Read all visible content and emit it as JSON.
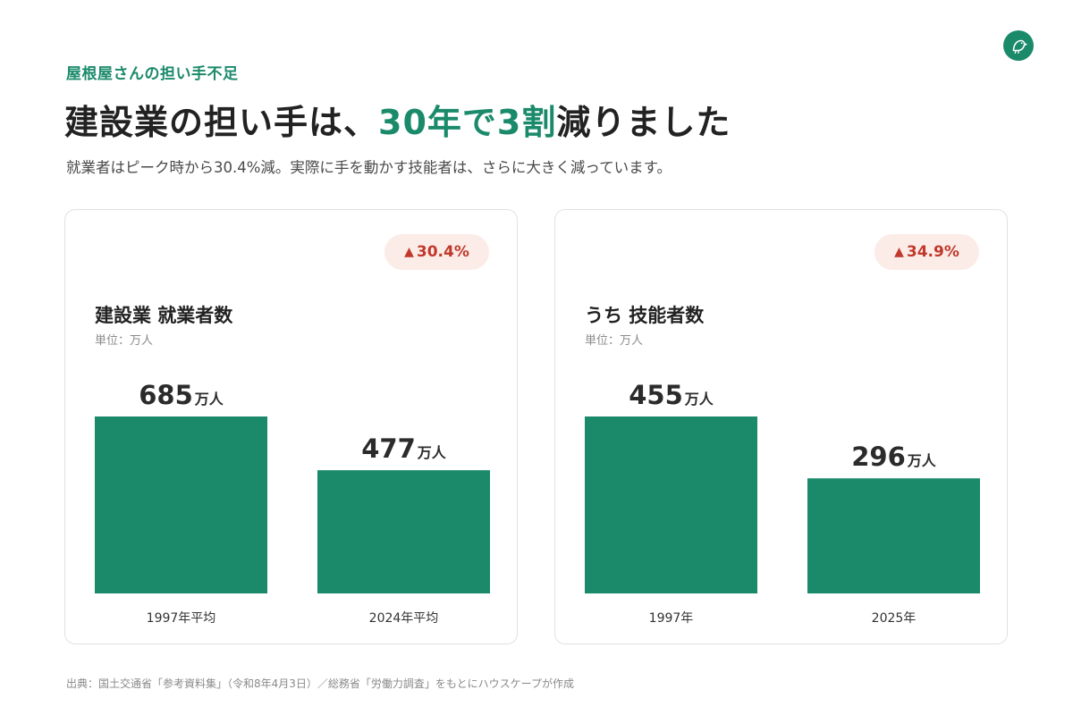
{
  "header": {
    "eyebrow": "屋根屋さんの担い手不足",
    "headline_pre": "建設業の担い手は、",
    "headline_accent": "30年で3割",
    "headline_post": "減りました",
    "subline": "就業者はピーク時から30.4%減。実際に手を動かす技能者は、さらに大きく減っています。"
  },
  "logo": {
    "icon": "bird-icon"
  },
  "colors": {
    "accent": "#1b8a6b",
    "bar": "#1b8a6b",
    "badge_text": "#c0392b",
    "badge_bg": "#fbece8"
  },
  "cards": [
    {
      "badge": "30.4%",
      "badge_icon": "▲",
      "title": "建設業 就業者数",
      "unit_label": "単位：万人"
    },
    {
      "badge": "34.9%",
      "badge_icon": "▲",
      "title": "うち 技能者数",
      "unit_label": "単位：万人"
    }
  ],
  "chart_data": [
    {
      "type": "bar",
      "title": "建設業 就業者数",
      "categories": [
        "1997年平均",
        "2024年平均"
      ],
      "values": [
        685,
        477
      ],
      "value_unit": "万人",
      "ylim": [
        0,
        685
      ],
      "grid": false
    },
    {
      "type": "bar",
      "title": "うち 技能者数",
      "categories": [
        "1997年",
        "2025年"
      ],
      "values": [
        455,
        296
      ],
      "value_unit": "万人",
      "ylim": [
        0,
        455
      ],
      "grid": false
    }
  ],
  "footer": {
    "source": "出典：国土交通省「参考資料集」（令和8年4月3日）／総務省「労働力調査」をもとにハウスケープが作成"
  }
}
